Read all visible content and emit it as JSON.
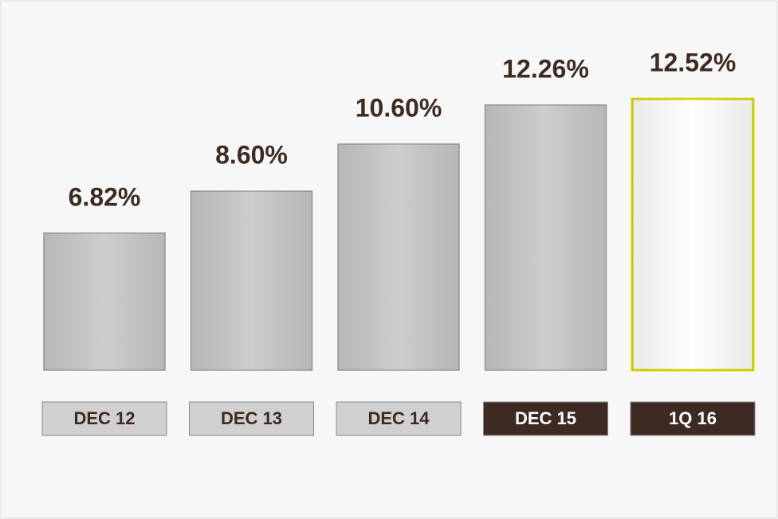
{
  "chart_data": {
    "type": "bar",
    "categories": [
      "DEC 12",
      "DEC 13",
      "DEC 14",
      "DEC 15",
      "1Q 16"
    ],
    "values": [
      6.82,
      8.6,
      10.6,
      12.26,
      12.52
    ],
    "value_labels": [
      "6.82%",
      "8.60%",
      "10.60%",
      "12.26%",
      "12.52%"
    ],
    "bar_colors": [
      "#c8c8c8",
      "#c8c8c8",
      "#c8c8c8",
      "#c8c8c8",
      "#ffffff"
    ],
    "bar_edge_colors": [
      "#9a9a9a",
      "#9a9a9a",
      "#9a9a9a",
      "#9a9a9a",
      "#d4d400"
    ],
    "label_fills": [
      "#d0d0d0",
      "#d0d0d0",
      "#d0d0d0",
      "#3d2b22",
      "#3d2b22"
    ],
    "label_text_colors": [
      "#3d2b22",
      "#3d2b22",
      "#3d2b22",
      "#ffffff",
      "#ffffff"
    ],
    "value_label_color": "#3d2b22",
    "ylim": [
      1,
      13
    ]
  }
}
